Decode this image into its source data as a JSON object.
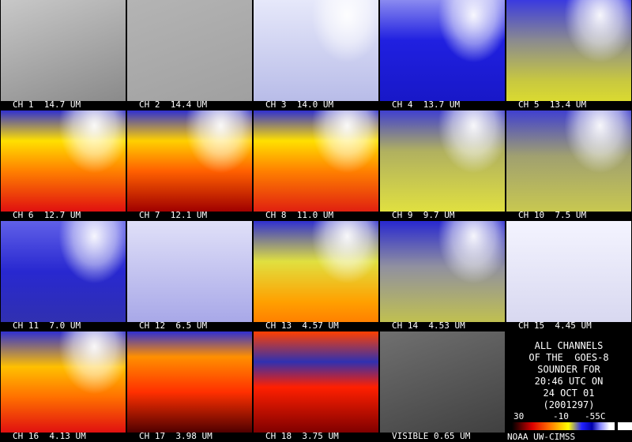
{
  "panels": [
    "CH 1  14.7 UM",
    "CH 2  14.4 UM",
    "CH 3  14.0 UM",
    "CH 4  13.7 UM",
    "CH 5  13.4 UM",
    "CH 6  12.7 UM",
    "CH 7  12.1 UM",
    "CH 8  11.0 UM",
    "CH 9  9.7 UM",
    "CH 10  7.5 UM",
    "CH 11  7.0 UM",
    "CH 12  6.5 UM",
    "CH 13  4.57 UM",
    "CH 14  4.53 UM",
    "CH 15  4.45 UM",
    "CH 16  4.13 UM",
    "CH 17  3.98 UM",
    "CH 18  3.75 UM",
    "VISIBLE 0.65 UM"
  ],
  "info": [
    "ALL CHANNELS",
    "OF THE  GOES-8",
    "SOUNDER FOR",
    "20:46 UTC ON",
    "24 OCT 01",
    "(2001297)"
  ],
  "colorbar": {
    "labels": [
      "30",
      "-10",
      "-55C"
    ]
  },
  "credit": "NOAA UW-CIMSS"
}
